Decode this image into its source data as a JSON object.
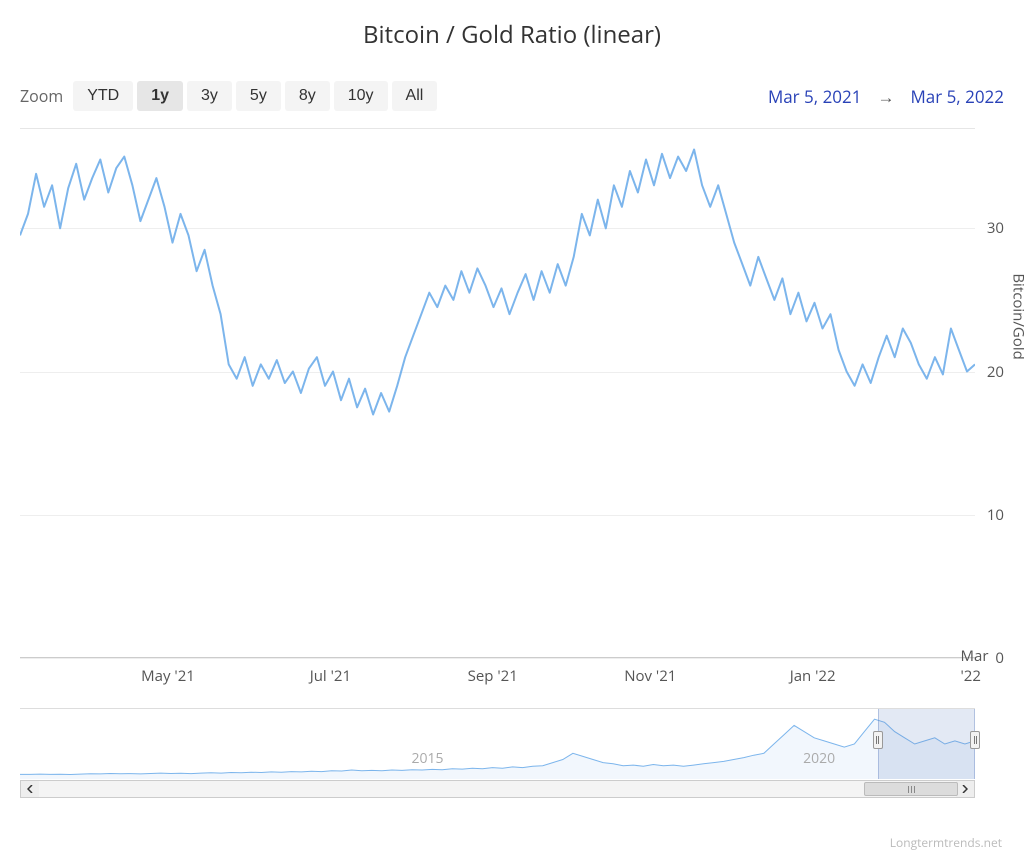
{
  "title": "Bitcoin / Gold Ratio (linear)",
  "zoom": {
    "label": "Zoom",
    "buttons": [
      "YTD",
      "1y",
      "3y",
      "5y",
      "8y",
      "10y",
      "All"
    ],
    "active_index": 1
  },
  "date_range": {
    "from": "Mar 5, 2021",
    "to": "Mar 5, 2022",
    "arrow": "→"
  },
  "main_chart": {
    "type": "line",
    "line_color": "#7cb5ec",
    "line_width": 2,
    "background_color": "#ffffff",
    "grid_color": "#eeeeee",
    "border_color": "#cccccc",
    "ylim": [
      0,
      37
    ],
    "y_ticks": [
      0,
      10,
      20,
      30
    ],
    "y_axis_title": "Bitcoin/Gold",
    "y_label_fontsize": 15,
    "x_ticks": [
      "May '21",
      "Jul '21",
      "Sep '21",
      "Nov '21",
      "Jan '22",
      "Mar '22"
    ],
    "x_tick_positions": [
      0.155,
      0.325,
      0.495,
      0.66,
      0.83,
      1.0
    ],
    "values": [
      29.5,
      31.0,
      33.8,
      31.5,
      33.0,
      30.0,
      32.8,
      34.5,
      32.0,
      33.5,
      34.8,
      32.5,
      34.2,
      35.0,
      33.0,
      30.5,
      32.0,
      33.5,
      31.5,
      29.0,
      31.0,
      29.5,
      27.0,
      28.5,
      26.0,
      24.0,
      20.5,
      19.5,
      21.0,
      19.0,
      20.5,
      19.5,
      20.8,
      19.2,
      20.0,
      18.5,
      20.2,
      21.0,
      19.0,
      20.0,
      18.0,
      19.5,
      17.5,
      18.8,
      17.0,
      18.5,
      17.2,
      19.0,
      21.0,
      22.5,
      24.0,
      25.5,
      24.5,
      26.0,
      25.0,
      27.0,
      25.5,
      27.2,
      26.0,
      24.5,
      25.8,
      24.0,
      25.5,
      26.8,
      25.0,
      27.0,
      25.5,
      27.5,
      26.0,
      28.0,
      31.0,
      29.5,
      32.0,
      30.0,
      33.0,
      31.5,
      34.0,
      32.5,
      34.8,
      33.0,
      35.2,
      33.5,
      35.0,
      34.0,
      35.5,
      33.0,
      31.5,
      33.0,
      31.0,
      29.0,
      27.5,
      26.0,
      28.0,
      26.5,
      25.0,
      26.5,
      24.0,
      25.5,
      23.5,
      24.8,
      23.0,
      24.0,
      21.5,
      20.0,
      19.0,
      20.5,
      19.2,
      21.0,
      22.5,
      21.0,
      23.0,
      22.0,
      20.5,
      19.5,
      21.0,
      19.8,
      23.0,
      21.5,
      20.0,
      20.5
    ]
  },
  "navigator": {
    "line_color": "#7cb5ec",
    "fill_color": "rgba(124,181,236,0.1)",
    "line_width": 1,
    "mask_color": "rgba(102,133,194,0.18)",
    "ticks": [
      {
        "label": "2015",
        "pos": 0.41
      },
      {
        "label": "2020",
        "pos": 0.82
      }
    ],
    "selection": {
      "start": 0.898,
      "end": 1.0
    },
    "values": [
      0.01,
      0.01,
      0.015,
      0.01,
      0.012,
      0.008,
      0.015,
      0.02,
      0.018,
      0.025,
      0.02,
      0.022,
      0.018,
      0.025,
      0.03,
      0.025,
      0.028,
      0.022,
      0.03,
      0.035,
      0.03,
      0.04,
      0.035,
      0.045,
      0.04,
      0.05,
      0.045,
      0.055,
      0.05,
      0.06,
      0.055,
      0.07,
      0.065,
      0.08,
      0.07,
      0.075,
      0.07,
      0.08,
      0.075,
      0.085,
      0.08,
      0.09,
      0.085,
      0.1,
      0.095,
      0.11,
      0.1,
      0.12,
      0.11,
      0.13,
      0.12,
      0.14,
      0.15,
      0.2,
      0.25,
      0.35,
      0.3,
      0.25,
      0.2,
      0.18,
      0.15,
      0.16,
      0.14,
      0.17,
      0.15,
      0.16,
      0.14,
      0.16,
      0.18,
      0.2,
      0.22,
      0.25,
      0.28,
      0.32,
      0.35,
      0.5,
      0.65,
      0.8,
      0.7,
      0.6,
      0.55,
      0.5,
      0.45,
      0.5,
      0.7,
      0.9,
      0.85,
      0.7,
      0.6,
      0.5,
      0.55,
      0.6,
      0.5,
      0.55,
      0.5,
      0.55
    ]
  },
  "scrollbar": {
    "thumb": {
      "start": 0.898,
      "end": 1.0
    }
  },
  "watermark": "Longtermtrends.net"
}
